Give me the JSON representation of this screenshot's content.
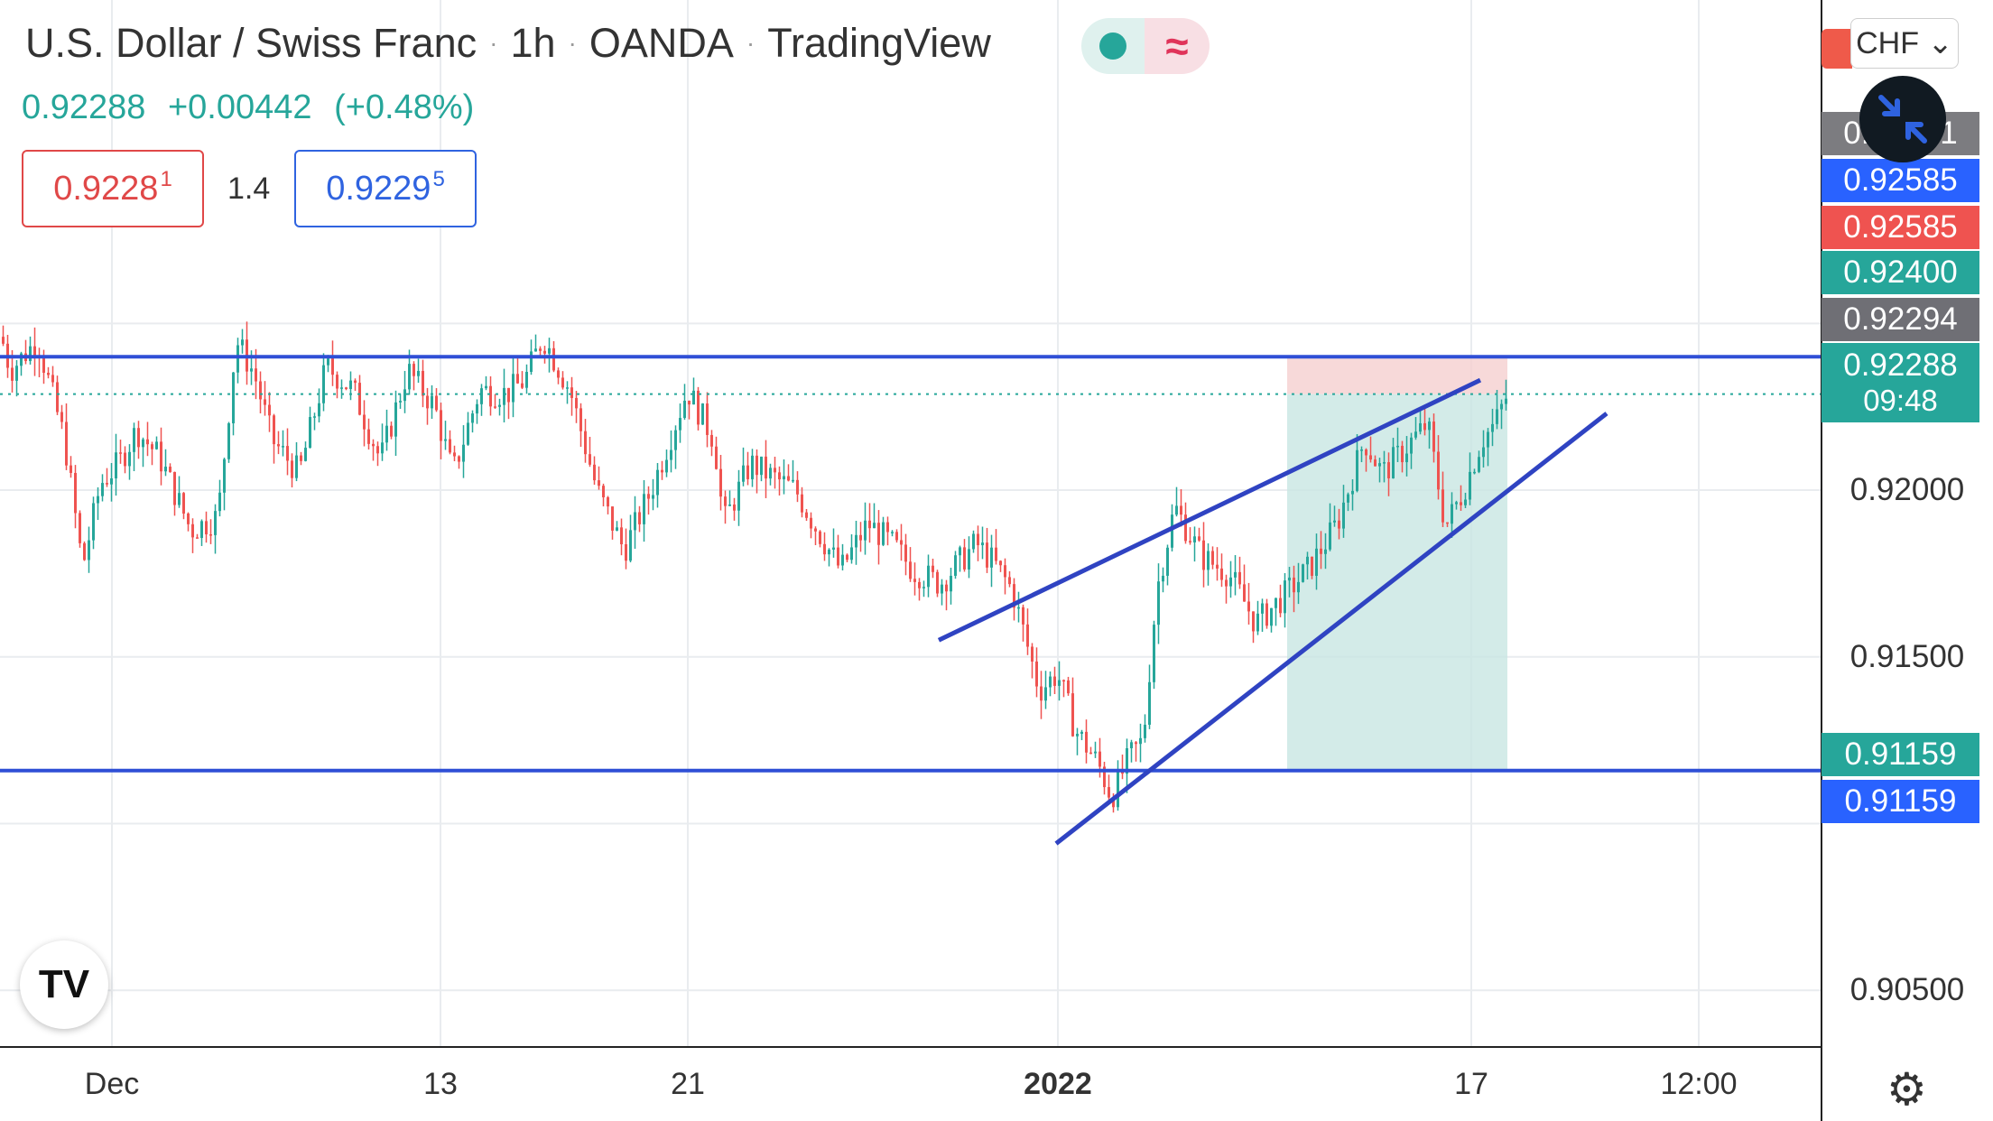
{
  "header": {
    "symbol": "U.S. Dollar / Swiss Franc",
    "interval": "1h",
    "broker": "OANDA",
    "platform": "TradingView",
    "sep": "·"
  },
  "quote": {
    "last": "0.92288",
    "change": "+0.00442",
    "change_pct": "(+0.48%)"
  },
  "trade_panel": {
    "sell_price": "0.9228",
    "sell_sup": "1",
    "spread": "1.4",
    "buy_price": "0.9229",
    "buy_sup": "5"
  },
  "currency_button": "CHF ⌄",
  "price_labels": [
    {
      "text": "0.92585",
      "color": "#2962ff",
      "price": 0.92585
    },
    {
      "text": "0.92585",
      "color": "#ef5350",
      "price": 0.92585
    },
    {
      "text": "0.92400",
      "color": "#26a69a",
      "price": 0.924
    },
    {
      "text": "0.92294",
      "color": "#6f6f75",
      "price": 0.92294
    },
    {
      "text": "0.91159",
      "color": "#26a69a",
      "price": 0.91159
    },
    {
      "text": "0.91159",
      "color": "#2962ff",
      "price": 0.91159
    }
  ],
  "hidden_label": {
    "text": "0.92681",
    "color": "#7c7c80"
  },
  "current_price": {
    "text": "0.92288",
    "countdown": "09:48",
    "color": "#26a69a",
    "price": 0.92288
  },
  "price_axis": {
    "labels": [
      "0.92000",
      "0.91500",
      "0.90500"
    ],
    "values": [
      0.92,
      0.915,
      0.905
    ]
  },
  "time_axis": {
    "labels": [
      {
        "text": "Dec",
        "bold": false
      },
      {
        "text": "13",
        "bold": false
      },
      {
        "text": "21",
        "bold": false
      },
      {
        "text": "2022",
        "bold": true
      },
      {
        "text": "17",
        "bold": false
      },
      {
        "text": "12:00",
        "bold": false
      }
    ]
  },
  "chart_data": {
    "type": "candlestick",
    "symbol": "USDCHF",
    "interval": "1h",
    "ylim": [
      0.9033,
      0.9347
    ],
    "path_key": [
      {
        "t": 0,
        "p": 0.9246
      },
      {
        "t": 10,
        "p": 0.9236
      },
      {
        "t": 40,
        "p": 0.9245
      },
      {
        "t": 70,
        "p": 0.9215
      },
      {
        "t": 90,
        "p": 0.9177
      },
      {
        "t": 110,
        "p": 0.9202
      },
      {
        "t": 130,
        "p": 0.9208
      },
      {
        "t": 150,
        "p": 0.9218
      },
      {
        "t": 175,
        "p": 0.921
      },
      {
        "t": 210,
        "p": 0.9188
      },
      {
        "t": 240,
        "p": 0.9192
      },
      {
        "t": 260,
        "p": 0.9245
      },
      {
        "t": 280,
        "p": 0.9235
      },
      {
        "t": 300,
        "p": 0.9215
      },
      {
        "t": 330,
        "p": 0.9205
      },
      {
        "t": 360,
        "p": 0.9237
      },
      {
        "t": 390,
        "p": 0.923
      },
      {
        "t": 420,
        "p": 0.9209
      },
      {
        "t": 450,
        "p": 0.9236
      },
      {
        "t": 480,
        "p": 0.9225
      },
      {
        "t": 500,
        "p": 0.9205
      },
      {
        "t": 530,
        "p": 0.923
      },
      {
        "t": 560,
        "p": 0.9229
      },
      {
        "t": 580,
        "p": 0.9233
      },
      {
        "t": 600,
        "p": 0.9246
      },
      {
        "t": 630,
        "p": 0.923
      },
      {
        "t": 660,
        "p": 0.92
      },
      {
        "t": 690,
        "p": 0.9182
      },
      {
        "t": 720,
        "p": 0.92
      },
      {
        "t": 760,
        "p": 0.923
      },
      {
        "t": 790,
        "p": 0.9215
      },
      {
        "t": 800,
        "p": 0.919
      },
      {
        "t": 830,
        "p": 0.9208
      },
      {
        "t": 860,
        "p": 0.9203
      },
      {
        "t": 880,
        "p": 0.92
      },
      {
        "t": 900,
        "p": 0.919
      },
      {
        "t": 930,
        "p": 0.9176
      },
      {
        "t": 960,
        "p": 0.919
      },
      {
        "t": 990,
        "p": 0.9183
      },
      {
        "t": 1010,
        "p": 0.9176
      },
      {
        "t": 1040,
        "p": 0.9172
      },
      {
        "t": 1060,
        "p": 0.9178
      },
      {
        "t": 1080,
        "p": 0.9184
      },
      {
        "t": 1100,
        "p": 0.9178
      },
      {
        "t": 1120,
        "p": 0.917
      },
      {
        "t": 1150,
        "p": 0.914
      },
      {
        "t": 1170,
        "p": 0.9145
      },
      {
        "t": 1190,
        "p": 0.9128
      },
      {
        "t": 1215,
        "p": 0.9118
      },
      {
        "t": 1230,
        "p": 0.9108
      },
      {
        "t": 1250,
        "p": 0.912
      },
      {
        "t": 1265,
        "p": 0.9125
      },
      {
        "t": 1280,
        "p": 0.917
      },
      {
        "t": 1300,
        "p": 0.9195
      },
      {
        "t": 1330,
        "p": 0.918
      },
      {
        "t": 1360,
        "p": 0.9175
      },
      {
        "t": 1390,
        "p": 0.916
      },
      {
        "t": 1420,
        "p": 0.9168
      },
      {
        "t": 1450,
        "p": 0.9177
      },
      {
        "t": 1480,
        "p": 0.919
      },
      {
        "t": 1510,
        "p": 0.9215
      },
      {
        "t": 1530,
        "p": 0.9205
      },
      {
        "t": 1560,
        "p": 0.9214
      },
      {
        "t": 1580,
        "p": 0.922
      },
      {
        "t": 1600,
        "p": 0.9189
      },
      {
        "t": 1620,
        "p": 0.92
      },
      {
        "t": 1640,
        "p": 0.9215
      },
      {
        "t": 1655,
        "p": 0.922
      },
      {
        "t": 1669,
        "p": 0.9229
      }
    ],
    "annotations": {
      "horizontal_lines": [
        0.924,
        0.91159
      ],
      "dotted_line": 0.92288,
      "channel_upper": [
        [
          1040,
          0.9155
        ],
        [
          1640,
          0.9233
        ]
      ],
      "channel_lower": [
        [
          1170,
          0.9094
        ],
        [
          1780,
          0.9223
        ]
      ],
      "short_position": {
        "entry": 0.92288,
        "stop": 0.924,
        "target": 0.91159
      }
    }
  }
}
